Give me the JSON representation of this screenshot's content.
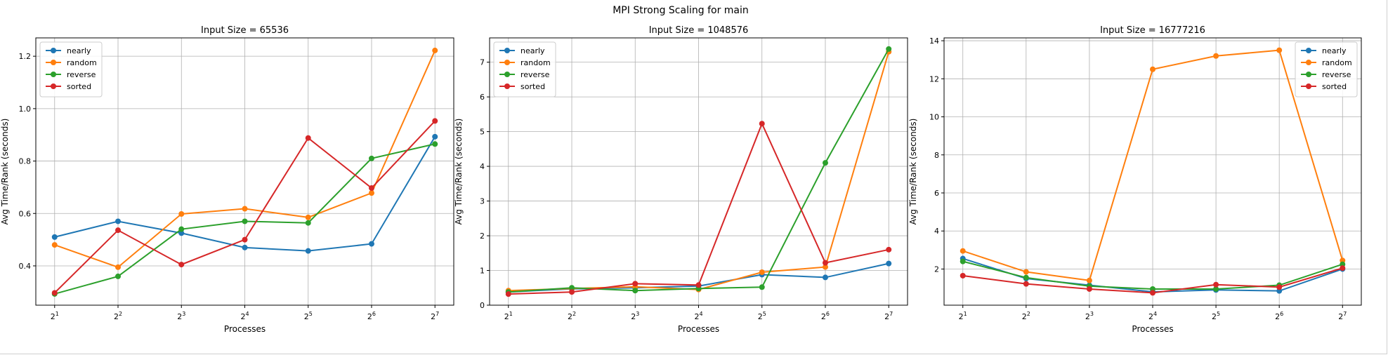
{
  "figure": {
    "title": "MPI Strong Scaling for main"
  },
  "chart_data": [
    {
      "type": "line",
      "title": "Input Size = 65536",
      "xlabel": "Processes",
      "ylabel": "Avg Time/Rank (seconds)",
      "x": [
        2,
        4,
        8,
        16,
        32,
        64,
        128
      ],
      "x_scale": "log2",
      "x_ticks": [
        "2^1",
        "2^2",
        "2^3",
        "2^4",
        "2^5",
        "2^6",
        "2^7"
      ],
      "ylim": [
        0.25,
        1.27
      ],
      "y_ticks": [
        0.4,
        0.6,
        0.8,
        1.0,
        1.2
      ],
      "y_tick_labels": [
        "0.4",
        "0.6",
        "0.8",
        "1.0",
        "1.2"
      ],
      "grid": true,
      "legend": "upper-left",
      "series": [
        {
          "name": "nearly",
          "color": "#1f77b4",
          "values": [
            0.51,
            0.57,
            0.525,
            0.47,
            0.457,
            0.484,
            0.893
          ]
        },
        {
          "name": "random",
          "color": "#ff7f0e",
          "values": [
            0.48,
            0.395,
            0.598,
            0.618,
            0.585,
            0.678,
            1.222
          ]
        },
        {
          "name": "reverse",
          "color": "#2ca02c",
          "values": [
            0.293,
            0.36,
            0.54,
            0.57,
            0.564,
            0.81,
            0.865
          ]
        },
        {
          "name": "sorted",
          "color": "#d62728",
          "values": [
            0.297,
            0.536,
            0.405,
            0.5,
            0.888,
            0.697,
            0.953
          ]
        }
      ]
    },
    {
      "type": "line",
      "title": "Input Size = 1048576",
      "xlabel": "Processes",
      "ylabel": "Avg Time/Rank (seconds)",
      "x": [
        2,
        4,
        8,
        16,
        32,
        64,
        128
      ],
      "x_scale": "log2",
      "x_ticks": [
        "2^1",
        "2^2",
        "2^3",
        "2^4",
        "2^5",
        "2^6",
        "2^7"
      ],
      "ylim": [
        0,
        7.7
      ],
      "y_ticks": [
        0,
        1,
        2,
        3,
        4,
        5,
        6,
        7
      ],
      "y_tick_labels": [
        "0",
        "1",
        "2",
        "3",
        "4",
        "5",
        "6",
        "7"
      ],
      "grid": true,
      "legend": "upper-left",
      "series": [
        {
          "name": "nearly",
          "color": "#1f77b4",
          "values": [
            0.38,
            0.47,
            0.5,
            0.55,
            0.88,
            0.8,
            1.2
          ]
        },
        {
          "name": "random",
          "color": "#ff7f0e",
          "values": [
            0.42,
            0.48,
            0.53,
            0.45,
            0.95,
            1.1,
            7.3
          ]
        },
        {
          "name": "reverse",
          "color": "#2ca02c",
          "values": [
            0.38,
            0.5,
            0.42,
            0.48,
            0.52,
            4.1,
            7.38
          ]
        },
        {
          "name": "sorted",
          "color": "#d62728",
          "values": [
            0.32,
            0.38,
            0.62,
            0.58,
            5.23,
            1.22,
            1.6
          ]
        }
      ]
    },
    {
      "type": "line",
      "title": "Input Size = 16777216",
      "xlabel": "Processes",
      "ylabel": "Avg Time/Rank (seconds)",
      "x": [
        2,
        4,
        8,
        16,
        32,
        64,
        128
      ],
      "x_scale": "log2",
      "x_ticks": [
        "2^1",
        "2^2",
        "2^3",
        "2^4",
        "2^5",
        "2^6",
        "2^7"
      ],
      "ylim": [
        0.1,
        14.15
      ],
      "y_ticks": [
        2,
        4,
        6,
        8,
        10,
        12,
        14
      ],
      "y_tick_labels": [
        "2",
        "4",
        "6",
        "8",
        "10",
        "12",
        "14"
      ],
      "grid": true,
      "legend": "upper-right",
      "series": [
        {
          "name": "nearly",
          "color": "#1f77b4",
          "values": [
            2.55,
            1.5,
            1.15,
            0.8,
            0.9,
            0.85,
            2.0
          ]
        },
        {
          "name": "random",
          "color": "#ff7f0e",
          "values": [
            2.95,
            1.85,
            1.4,
            12.5,
            13.2,
            13.5,
            2.45
          ]
        },
        {
          "name": "reverse",
          "color": "#2ca02c",
          "values": [
            2.4,
            1.55,
            1.1,
            0.95,
            0.95,
            1.15,
            2.25
          ]
        },
        {
          "name": "sorted",
          "color": "#d62728",
          "values": [
            1.65,
            1.22,
            0.95,
            0.75,
            1.18,
            1.05,
            2.05
          ]
        }
      ]
    }
  ]
}
